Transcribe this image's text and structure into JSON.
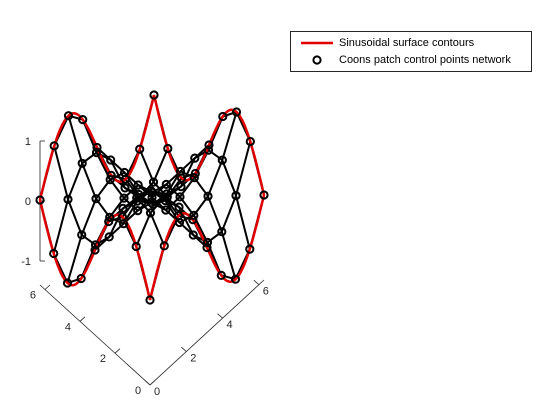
{
  "chart_data": {
    "type": "line3d",
    "title": "",
    "xlabel": "",
    "ylabel": "",
    "zlabel": "",
    "xlim": [
      0,
      6
    ],
    "ylim": [
      0,
      6
    ],
    "zlim": [
      -1,
      1
    ],
    "x_ticks": [
      "0",
      "2",
      "4",
      "6"
    ],
    "y_ticks": [
      "0",
      "2",
      "4",
      "6"
    ],
    "z_ticks": [
      "-1",
      "0",
      "1"
    ],
    "grid": false,
    "legend_location": "top-right",
    "series": [
      {
        "name": "Sinusoidal surface contours",
        "color": "#e00000",
        "description": "Boundary curves z = sin(x) along y = 0 and y = 2*pi, and z = sin(y) along x = 0 and x = 2*pi",
        "x_range": [
          0,
          6.2832
        ],
        "y_range": [
          0,
          6.2832
        ]
      },
      {
        "name": "Coons patch control points network",
        "color": "#000000",
        "marker": "o",
        "grid_size": [
          9,
          9
        ],
        "u_values": [
          0,
          0.7854,
          1.5708,
          2.3562,
          3.1416,
          3.927,
          4.7124,
          5.4978,
          6.2832
        ],
        "v_values": [
          0,
          0.7854,
          1.5708,
          2.3562,
          3.1416,
          3.927,
          4.7124,
          5.4978,
          6.2832
        ],
        "z_edge_values": [
          0,
          0.707,
          1,
          0.707,
          0,
          -0.707,
          -1,
          -0.707,
          0
        ]
      }
    ]
  },
  "legend": {
    "entries": [
      {
        "label": "Sinusoidal surface contours",
        "color": "#e00000"
      },
      {
        "label": "Coons patch control points network",
        "color": "#000000"
      }
    ]
  }
}
